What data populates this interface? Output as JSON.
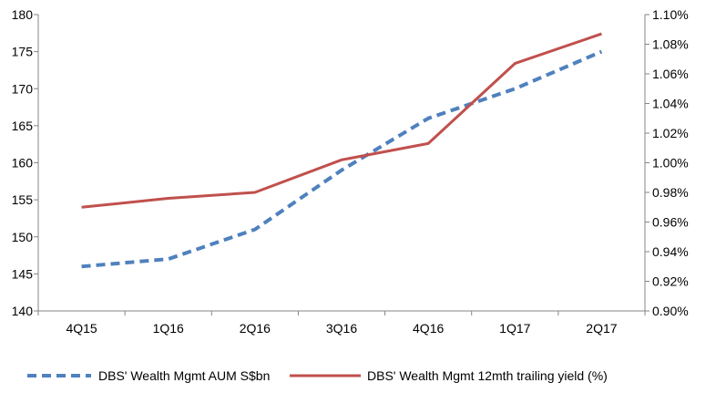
{
  "chart_data": {
    "type": "line",
    "categories": [
      "4Q15",
      "1Q16",
      "2Q16",
      "3Q16",
      "4Q16",
      "1Q17",
      "2Q17"
    ],
    "series": [
      {
        "name": "DBS' Wealth Mgmt AUM S$bn",
        "axis": "left",
        "color": "#4F81BD",
        "style": "dashed",
        "values": [
          146,
          147,
          151,
          159,
          166,
          170,
          175
        ]
      },
      {
        "name": "DBS' Wealth Mgmt 12mth trailing yield (%)",
        "axis": "right",
        "color": "#C0504D",
        "style": "solid",
        "values": [
          0.97,
          0.976,
          0.98,
          1.002,
          1.013,
          1.067,
          1.087
        ]
      }
    ],
    "y_left": {
      "min": 140,
      "max": 180,
      "step": 5
    },
    "y_right": {
      "min": 0.9,
      "max": 1.1,
      "step": 0.02,
      "format": "percent2"
    },
    "grid": false,
    "legend": "bottom"
  }
}
